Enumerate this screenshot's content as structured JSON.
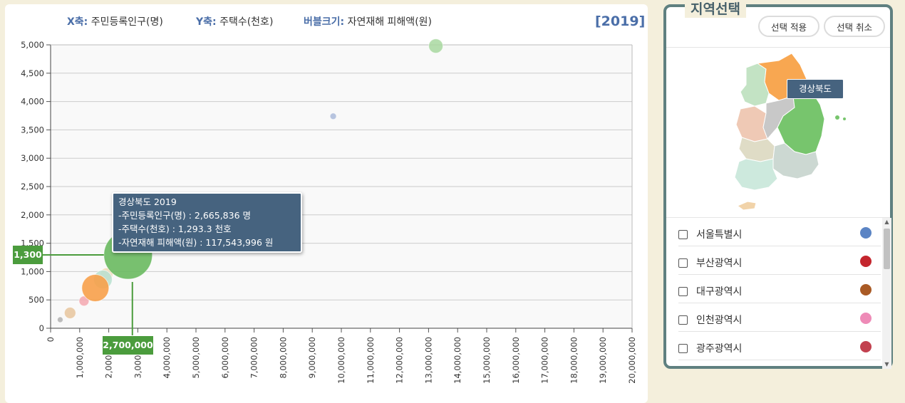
{
  "legend": {
    "x_key": "X축:",
    "x_val": "주민등록인구(명)",
    "y_key": "Y축:",
    "y_val": "주택수(천호)",
    "size_key": "버블크기:",
    "size_val": "자연재해 피해액(원)",
    "year": "[2019]"
  },
  "tooltip": {
    "title": "경상북도 2019",
    "line1": "-주민등록인구(명) : 2,665,836 명",
    "line2": "-주택수(천호) : 1,293.3 천호",
    "line3": "-자연재해 피해액(원) : 117,543,996 원"
  },
  "callouts": {
    "y": "1,300",
    "x": "2,700,000"
  },
  "chart_data": {
    "type": "scatter",
    "subtype": "bubble",
    "xlim": [
      0,
      20000000
    ],
    "ylim": [
      0,
      5000
    ],
    "x_ticks": [
      0,
      1000000,
      2000000,
      3000000,
      4000000,
      5000000,
      6000000,
      7000000,
      8000000,
      9000000,
      10000000,
      11000000,
      12000000,
      13000000,
      14000000,
      15000000,
      16000000,
      17000000,
      18000000,
      19000000,
      20000000
    ],
    "x_tick_labels": [
      "0",
      "1,000,000",
      "2,000,000",
      "3,000,000",
      "4,000,000",
      "5,000,000",
      "6,000,000",
      "7,000,000",
      "8,000,000",
      "9,000,000",
      "10,000,000",
      "11,000,000",
      "12,000,000",
      "13,000,000",
      "14,000,000",
      "15,000,000",
      "16,000,000",
      "17,000,000",
      "18,000,000",
      "19,000,000",
      "20,000,000"
    ],
    "y_ticks": [
      0,
      500,
      1000,
      1500,
      2000,
      2500,
      3000,
      3500,
      4000,
      4500,
      5000
    ],
    "y_tick_labels": [
      "0",
      "500",
      "1,000",
      "1,500",
      "2,000",
      "2,500",
      "3,000",
      "3,500",
      "4,000",
      "4,500",
      "5,000"
    ],
    "grid": true,
    "highlight": {
      "x": 2665836,
      "y": 1293.3
    },
    "points": [
      {
        "x": 13250000,
        "y": 4980,
        "r": 10,
        "color": "#a8d8a0",
        "opacity": 0.85
      },
      {
        "x": 9720000,
        "y": 3740,
        "r": 4.5,
        "color": "#a6b6d8",
        "opacity": 0.8
      },
      {
        "x": 330000,
        "y": 150,
        "r": 4,
        "color": "#b5b5b5",
        "opacity": 0.9
      },
      {
        "x": 670000,
        "y": 270,
        "r": 8,
        "color": "#e8c69e",
        "opacity": 0.85
      },
      {
        "x": 1150000,
        "y": 480,
        "r": 7,
        "color": "#f4a8b0",
        "opacity": 0.85
      },
      {
        "x": 1920000,
        "y": 950,
        "r": 9,
        "color": "#f0d8b0",
        "opacity": 0.8
      },
      {
        "x": 1800000,
        "y": 860,
        "r": 13,
        "color": "#b9e0d0",
        "opacity": 0.85
      },
      {
        "x": 1540000,
        "y": 710,
        "r": 19,
        "color": "#f7a04a",
        "opacity": 0.9
      },
      {
        "x": 2665836,
        "y": 1293.3,
        "r": 34,
        "color": "#6dbb63",
        "opacity": 0.92
      }
    ]
  },
  "region_panel": {
    "title": "지역선택",
    "apply": "선택 적용",
    "cancel": "선택 취소",
    "map_tooltip": "경상북도",
    "map_regions": [
      {
        "name": "gangwon",
        "color": "#f8a751"
      },
      {
        "name": "gyeonggi",
        "color": "#c3e3c4"
      },
      {
        "name": "chungbuk",
        "color": "#c8c8c8"
      },
      {
        "name": "chungnam",
        "color": "#efc9b5"
      },
      {
        "name": "gyeongbuk",
        "color": "#77c56d"
      },
      {
        "name": "jeonbuk",
        "color": "#dfdcc6"
      },
      {
        "name": "gyeongnam",
        "color": "#ccd8d2"
      },
      {
        "name": "jeonnam",
        "color": "#cde9dd"
      },
      {
        "name": "jeju",
        "color": "#f1d3a9"
      }
    ],
    "items": [
      {
        "label": "서울특별시",
        "color": "#5b84c4"
      },
      {
        "label": "부산광역시",
        "color": "#c4262e"
      },
      {
        "label": "대구광역시",
        "color": "#a95a25"
      },
      {
        "label": "인천광역시",
        "color": "#ee8bb7"
      },
      {
        "label": "광주광역시",
        "color": "#c2414f"
      },
      {
        "label": "",
        "color": "#3a9a9a"
      }
    ]
  }
}
